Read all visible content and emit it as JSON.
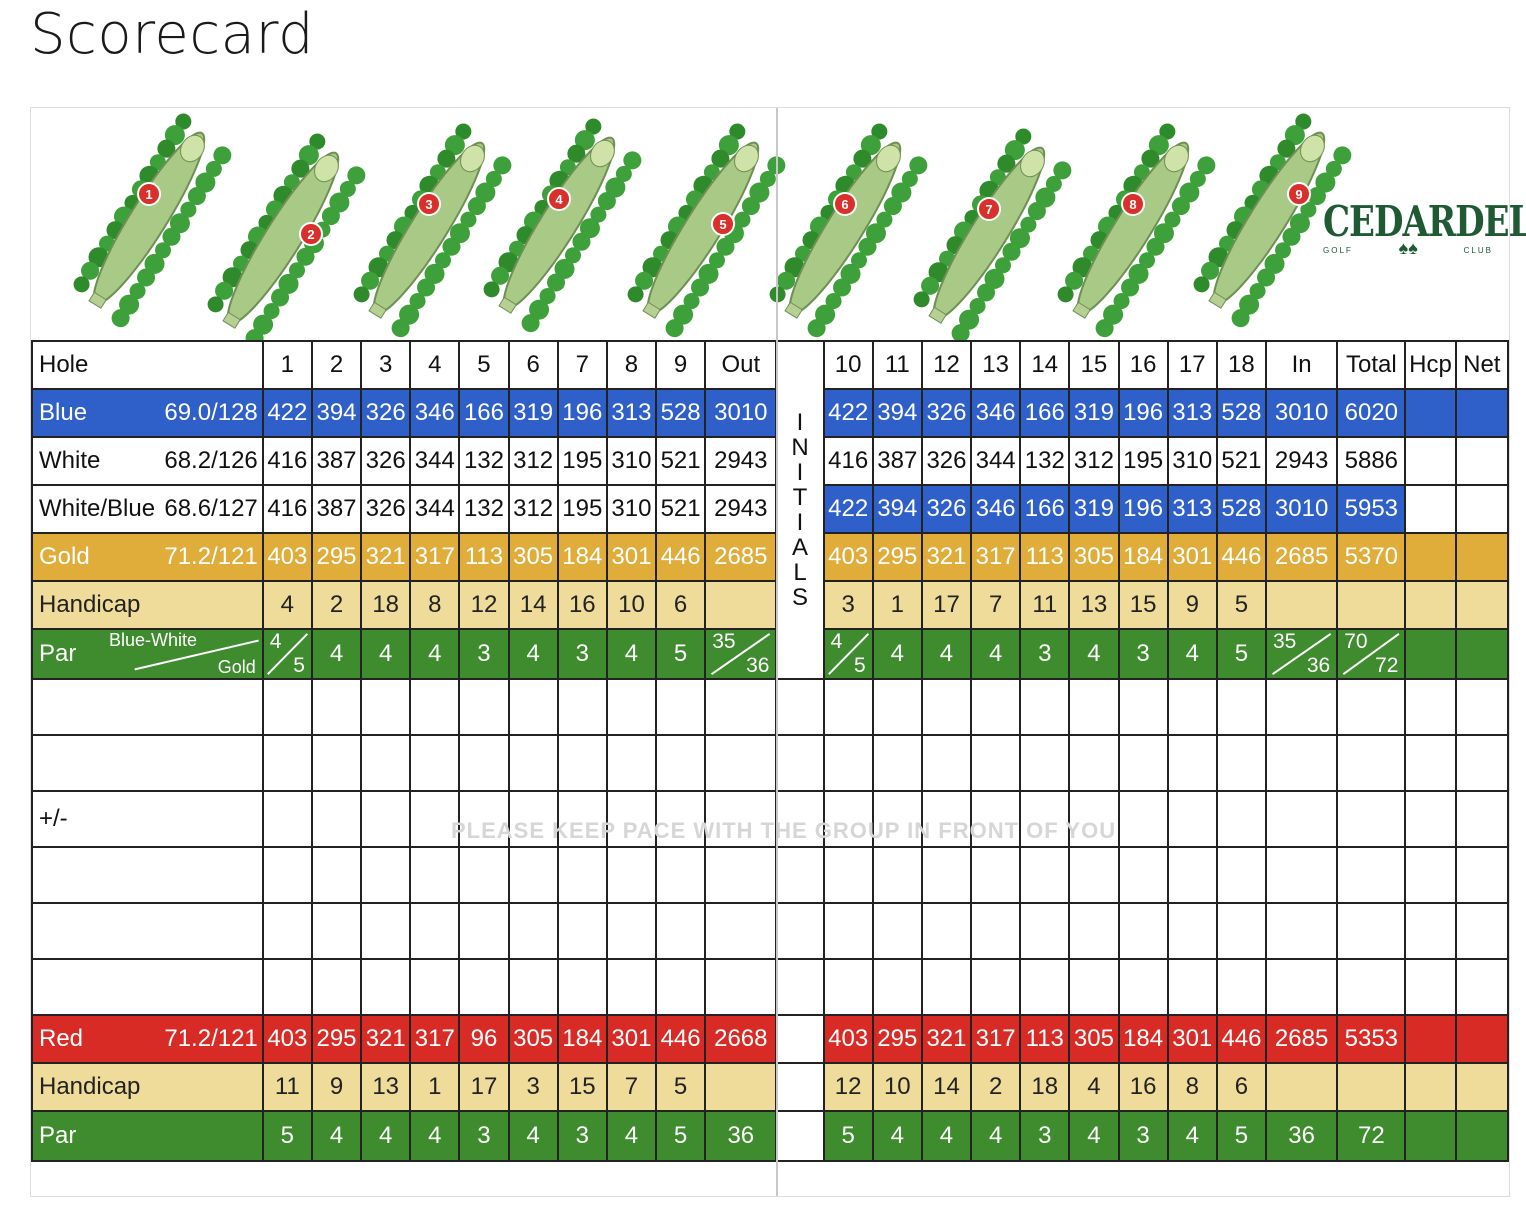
{
  "page_title": "Scorecard",
  "logo": {
    "name": "CEDARDELL",
    "sub_left": "GOLF",
    "sub_right": "CLUB"
  },
  "holes_front": [
    "1",
    "2",
    "3",
    "4",
    "5",
    "6",
    "7",
    "8",
    "9"
  ],
  "holes_back": [
    "6",
    "7",
    "8",
    "9"
  ],
  "header": {
    "hole": "Hole",
    "front": [
      "1",
      "2",
      "3",
      "4",
      "5",
      "6",
      "7",
      "8",
      "9",
      "Out"
    ],
    "back": [
      "10",
      "11",
      "12",
      "13",
      "14",
      "15",
      "16",
      "17",
      "18",
      "In",
      "Total",
      "Hcp",
      "Net"
    ]
  },
  "initials": [
    "I",
    "N",
    "I",
    "T",
    "I",
    "A",
    "L",
    "S"
  ],
  "tees": [
    {
      "name": "Blue",
      "rating": "69.0/128",
      "front": [
        "422",
        "394",
        "326",
        "346",
        "166",
        "319",
        "196",
        "313",
        "528",
        "3010"
      ],
      "back": [
        "422",
        "394",
        "326",
        "346",
        "166",
        "319",
        "196",
        "313",
        "528",
        "3010",
        "6020",
        "",
        ""
      ]
    },
    {
      "name": "White",
      "rating": "68.2/126",
      "front": [
        "416",
        "387",
        "326",
        "344",
        "132",
        "312",
        "195",
        "310",
        "521",
        "2943"
      ],
      "back": [
        "416",
        "387",
        "326",
        "344",
        "132",
        "312",
        "195",
        "310",
        "521",
        "2943",
        "5886",
        "",
        ""
      ]
    },
    {
      "name": "White/Blue",
      "rating": "68.6/127",
      "front": [
        "416",
        "387",
        "326",
        "344",
        "132",
        "312",
        "195",
        "310",
        "521",
        "2943"
      ],
      "back": [
        "422",
        "394",
        "326",
        "346",
        "166",
        "319",
        "196",
        "313",
        "528",
        "3010",
        "5953",
        "",
        ""
      ]
    },
    {
      "name": "Gold",
      "rating": "71.2/121",
      "front": [
        "403",
        "295",
        "321",
        "317",
        "113",
        "305",
        "184",
        "301",
        "446",
        "2685"
      ],
      "back": [
        "403",
        "295",
        "321",
        "317",
        "113",
        "305",
        "184",
        "301",
        "446",
        "2685",
        "5370",
        "",
        ""
      ]
    }
  ],
  "handicap_men": {
    "label": "Handicap",
    "front": [
      "4",
      "2",
      "18",
      "8",
      "12",
      "14",
      "16",
      "10",
      "6",
      ""
    ],
    "back": [
      "3",
      "1",
      "17",
      "7",
      "11",
      "13",
      "15",
      "9",
      "5",
      "",
      "",
      "",
      ""
    ]
  },
  "par_men": {
    "label": "Par",
    "sub_top": "Blue-White",
    "sub_bottom": "Gold",
    "front": [
      "4",
      "4",
      "4",
      "3",
      "4",
      "3",
      "4",
      "5"
    ],
    "hole1": {
      "top": "4",
      "bottom": "5"
    },
    "out": {
      "top": "35",
      "bottom": "36"
    },
    "back": [
      "4",
      "4",
      "4",
      "3",
      "4",
      "3",
      "4",
      "5"
    ],
    "hole10": {
      "top": "4",
      "bottom": "5"
    },
    "in": {
      "top": "35",
      "bottom": "36"
    },
    "total": {
      "top": "70",
      "bottom": "72"
    }
  },
  "plus_minus": "+/-",
  "watermark": "PLEASE KEEP PACE WITH THE GROUP IN FRONT OF YOU",
  "red": {
    "name": "Red",
    "rating": "71.2/121",
    "front": [
      "403",
      "295",
      "321",
      "317",
      "96",
      "305",
      "184",
      "301",
      "446",
      "2668"
    ],
    "back": [
      "403",
      "295",
      "321",
      "317",
      "113",
      "305",
      "184",
      "301",
      "446",
      "2685",
      "5353",
      "",
      ""
    ]
  },
  "handicap_women": {
    "label": "Handicap",
    "front": [
      "11",
      "9",
      "13",
      "1",
      "17",
      "3",
      "15",
      "7",
      "5",
      ""
    ],
    "back": [
      "12",
      "10",
      "14",
      "2",
      "18",
      "4",
      "16",
      "8",
      "6",
      "",
      "",
      "",
      ""
    ]
  },
  "par_women": {
    "label": "Par",
    "front": [
      "5",
      "4",
      "4",
      "4",
      "3",
      "4",
      "3",
      "4",
      "5",
      "36"
    ],
    "back": [
      "5",
      "4",
      "4",
      "4",
      "3",
      "4",
      "3",
      "4",
      "5",
      "36",
      "72",
      "",
      ""
    ]
  },
  "colors": {
    "blue": "#2f5fc8",
    "gold": "#e0ac3a",
    "handicap": "#efdc9b",
    "par": "#3f8c2f",
    "red": "#d92b26",
    "logo": "#1f5a34"
  }
}
